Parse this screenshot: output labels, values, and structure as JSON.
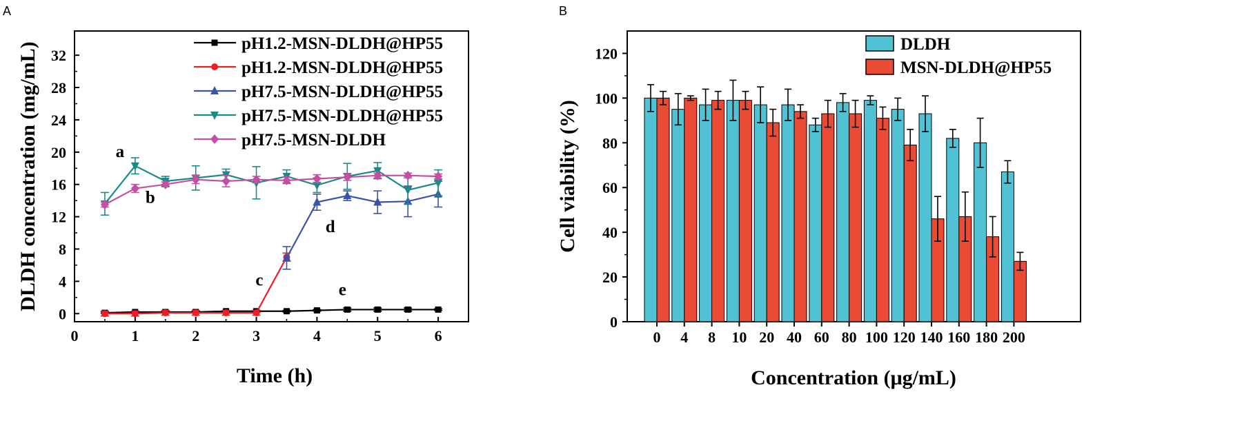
{
  "chart_data": [
    {
      "panel_label": "A",
      "type": "line",
      "title": "",
      "xlabel": "Time (h)",
      "ylabel": "DLDH concentration (mg/mL)",
      "xlim": [
        0,
        6.5
      ],
      "ylim": [
        -1,
        35
      ],
      "xticks": [
        0,
        1,
        2,
        3,
        4,
        5,
        6
      ],
      "yticks": [
        0,
        4,
        8,
        12,
        16,
        20,
        24,
        28,
        32
      ],
      "legend_position": "top-right",
      "series": [
        {
          "name": "pH1.2-MSN-DLDH@HP55",
          "color": "#000000",
          "marker": "square",
          "x": [
            0.5,
            1,
            1.5,
            2,
            2.5,
            3,
            3.5,
            4,
            4.5,
            5,
            5.5,
            6
          ],
          "y": [
            0.1,
            0.2,
            0.2,
            0.2,
            0.3,
            0.3,
            0.3,
            0.4,
            0.5,
            0.5,
            0.5,
            0.5
          ],
          "err": [
            0.1,
            0.1,
            0.1,
            0.1,
            0.1,
            0.1,
            0.1,
            0.1,
            0.2,
            0.2,
            0.2,
            0.1
          ]
        },
        {
          "name": "pH1.2-MSN-DLDH@HP55",
          "color": "#ee1c24",
          "marker": "circle",
          "x": [
            0.5,
            1,
            1.5,
            2,
            2.5,
            3,
            3.5
          ],
          "y": [
            0.0,
            0.0,
            0.1,
            0.1,
            0.1,
            0.1,
            7.0
          ],
          "err": [
            0.3,
            0.3,
            0.3,
            0.3,
            0.3,
            0.3,
            0.5
          ]
        },
        {
          "name": "pH7.5-MSN-DLDH@HP55",
          "color": "#3a53a4",
          "marker": "triangle-up",
          "x": [
            3.5,
            4,
            4.5,
            5,
            5.5,
            6
          ],
          "y": [
            6.9,
            13.8,
            14.6,
            13.8,
            13.9,
            14.8
          ],
          "err": [
            1.4,
            1.0,
            0.6,
            1.4,
            1.9,
            1.6
          ]
        },
        {
          "name": "pH7.5-MSN-DLDH@HP55",
          "color": "#198a84",
          "marker": "triangle-down",
          "x": [
            0.5,
            1,
            1.5,
            2,
            2.5,
            3,
            3.5,
            4,
            4.5,
            5,
            5.5,
            6
          ],
          "y": [
            13.6,
            18.3,
            16.4,
            16.8,
            17.2,
            16.2,
            17.0,
            15.9,
            17.0,
            17.7,
            15.3,
            16.2
          ],
          "err": [
            1.4,
            1.0,
            0.6,
            1.5,
            0.7,
            2.0,
            0.8,
            0.9,
            1.6,
            1.0,
            1.7,
            1.6
          ]
        },
        {
          "name": "pH7.5-MSN-DLDH",
          "color": "#c64fa6",
          "marker": "diamond",
          "x": [
            0.5,
            1,
            1.5,
            2,
            2.5,
            3,
            3.5,
            4,
            4.5,
            5,
            5.5,
            6
          ],
          "y": [
            13.5,
            15.5,
            16.0,
            16.6,
            16.4,
            16.6,
            16.5,
            16.7,
            16.9,
            17.1,
            17.1,
            17.0
          ],
          "err": [
            0.3,
            0.5,
            0.3,
            0.5,
            0.7,
            0.4,
            0.4,
            0.5,
            0.4,
            0.3,
            0.3,
            0.3
          ]
        }
      ],
      "annotations": [
        {
          "text": "a",
          "x": 0.75,
          "y": 19.4
        },
        {
          "text": "b",
          "x": 1.25,
          "y": 13.7
        },
        {
          "text": "c",
          "x": 3.05,
          "y": 3.5
        },
        {
          "text": "d",
          "x": 4.22,
          "y": 10.1
        },
        {
          "text": "e",
          "x": 4.42,
          "y": 2.3
        }
      ]
    },
    {
      "panel_label": "B",
      "type": "bar",
      "title": "",
      "xlabel": "Concentration (μg/mL)",
      "ylabel": "Cell viability (%)",
      "ylim": [
        0,
        130
      ],
      "yticks": [
        0,
        20,
        40,
        60,
        80,
        100,
        120
      ],
      "legend_position": "top-right",
      "categories": [
        "0",
        "4",
        "8",
        "10",
        "20",
        "40",
        "60",
        "80",
        "100",
        "120",
        "140",
        "160",
        "180",
        "200"
      ],
      "series": [
        {
          "name": "DLDH",
          "color": "#51c1d4",
          "values": [
            100,
            95,
            97,
            99,
            97,
            97,
            88,
            98,
            99,
            95,
            93,
            82,
            80,
            67
          ],
          "err": [
            6,
            7,
            7,
            9,
            8,
            7,
            3,
            4,
            2,
            5,
            8,
            4,
            11,
            5
          ]
        },
        {
          "name": "MSN-DLDH@HP55",
          "color": "#e94b35",
          "values": [
            100,
            100,
            99,
            99,
            89,
            94,
            93,
            93,
            91,
            79,
            46,
            47,
            38,
            27
          ],
          "err": [
            3,
            1,
            4,
            4,
            6,
            3,
            6,
            6,
            5,
            7,
            10,
            11,
            9,
            4
          ]
        }
      ]
    }
  ]
}
